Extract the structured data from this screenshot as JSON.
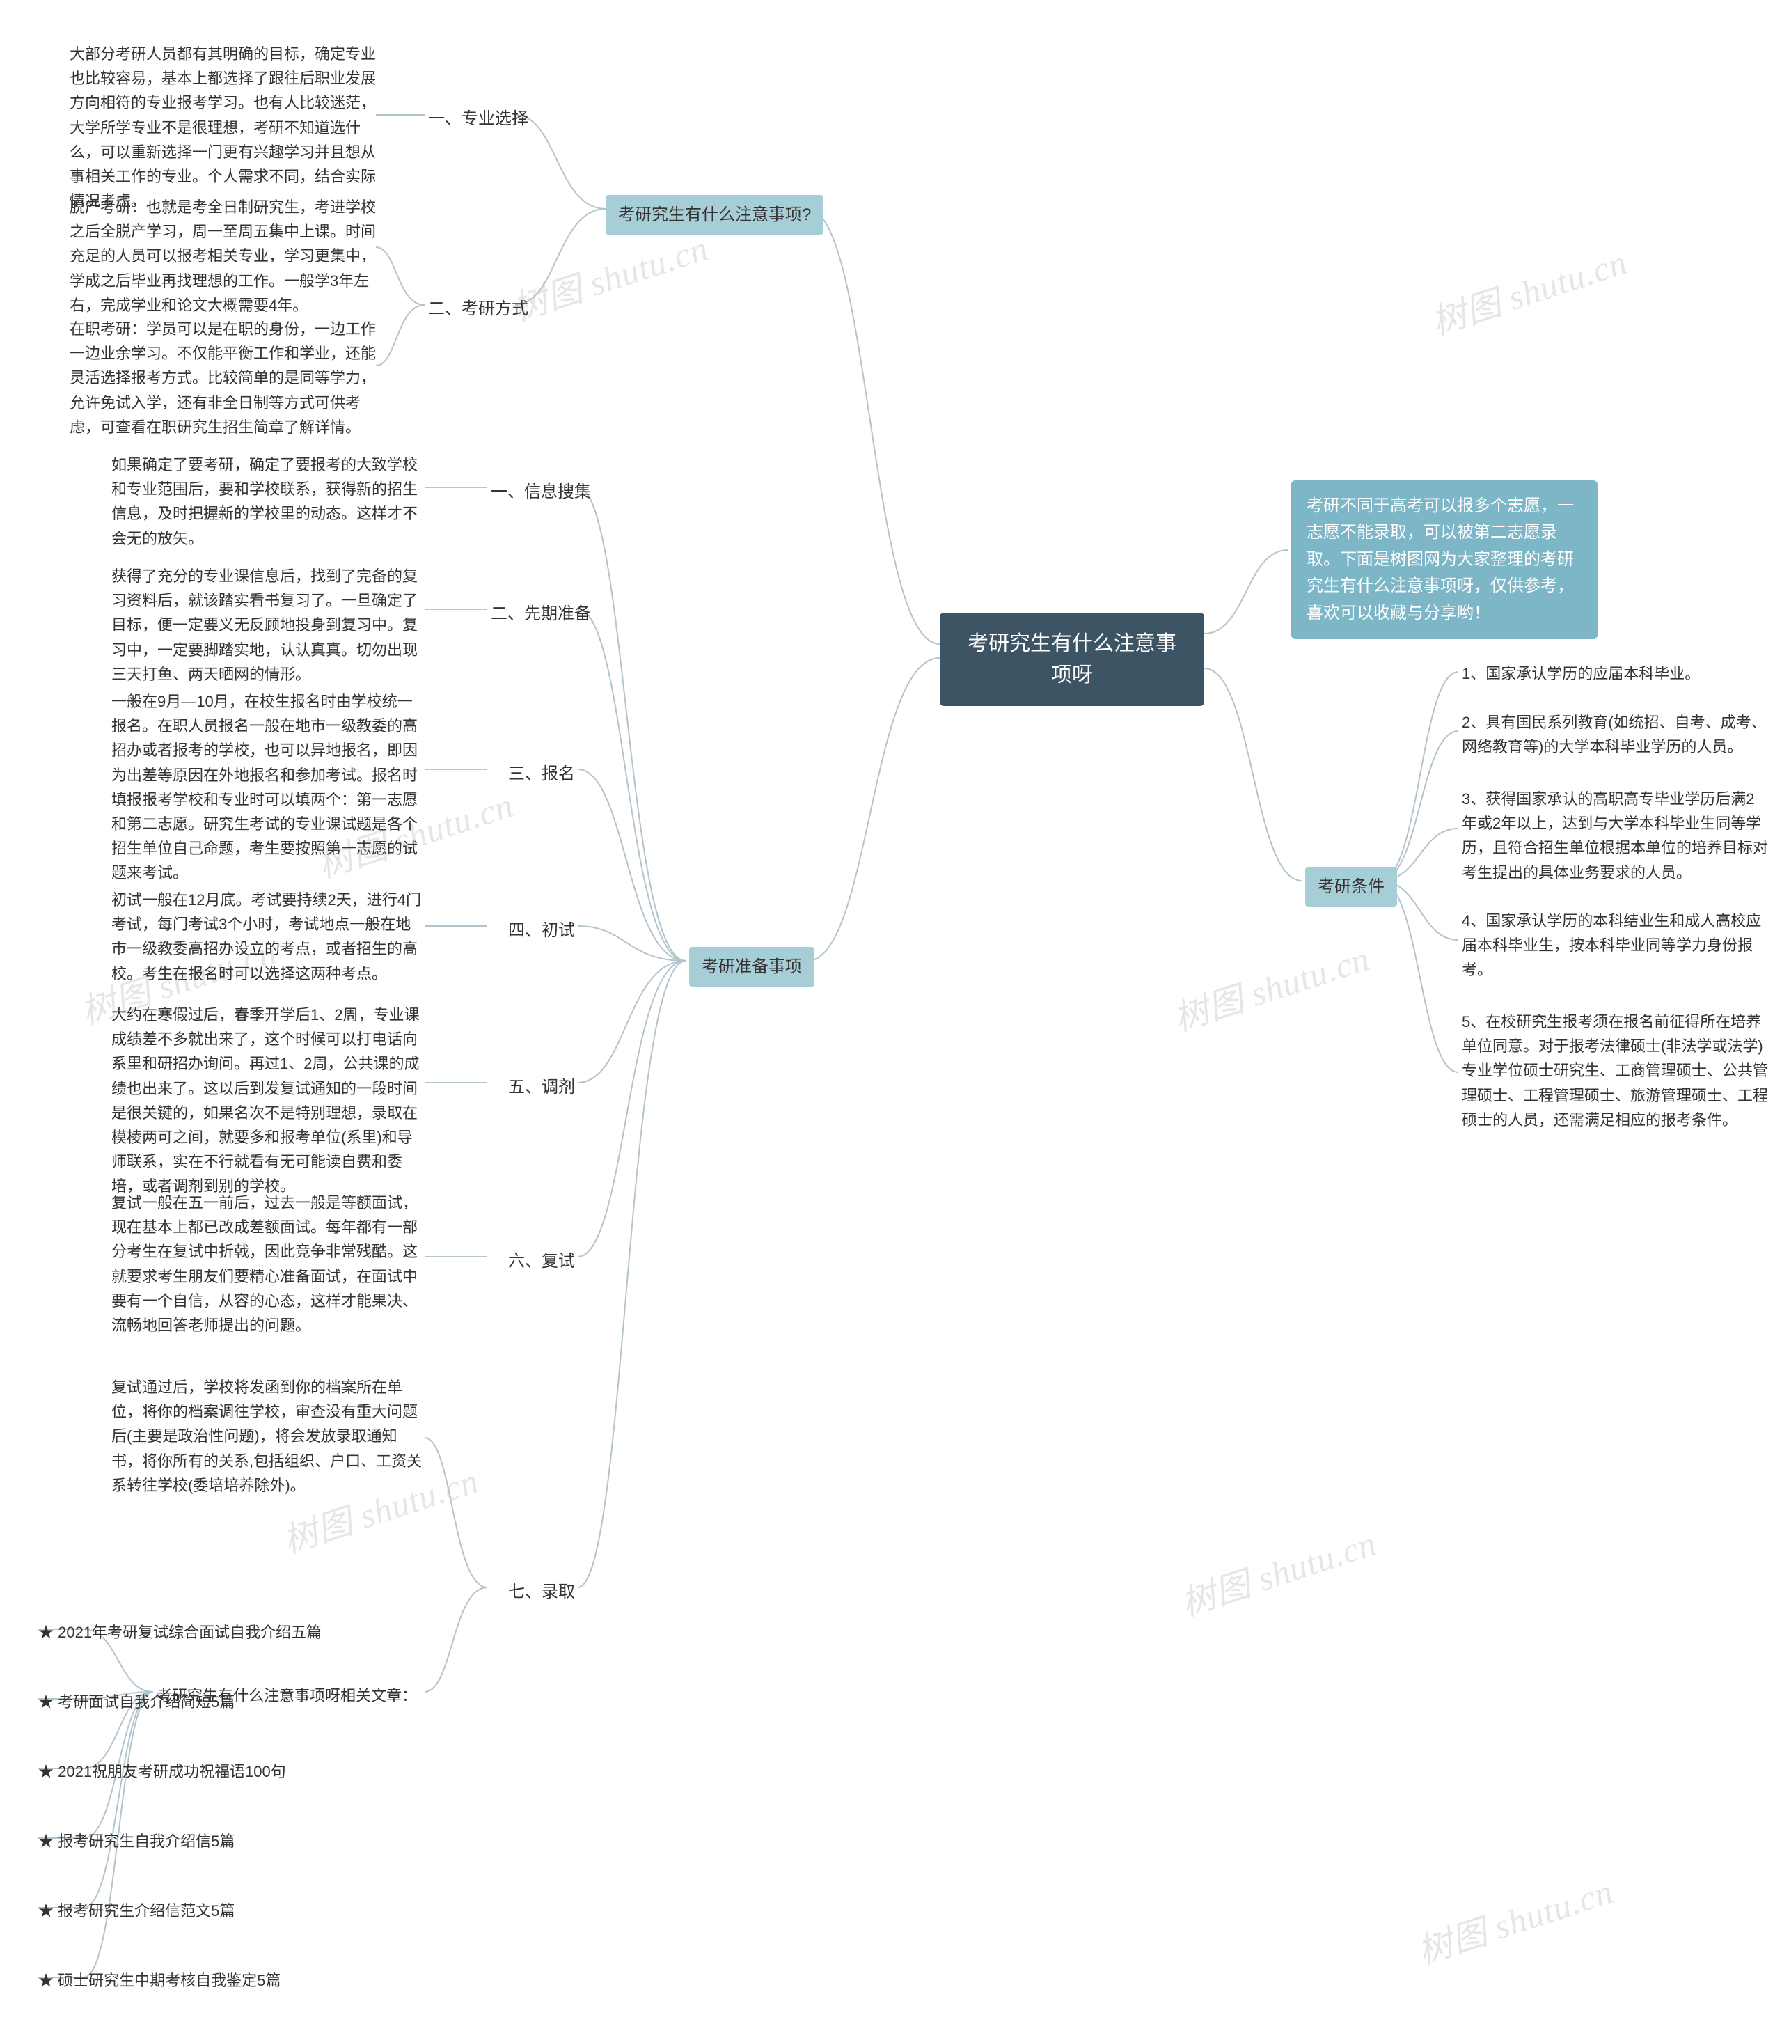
{
  "colors": {
    "bg": "#ffffff",
    "root_bg": "#3d5464",
    "root_fg": "#ffffff",
    "intro_bg": "#7db6c7",
    "intro_fg": "#ffffff",
    "group_bg": "#a7cdd7",
    "group_fg": "#333333",
    "text": "#333333",
    "connector": "#b3c4cc",
    "watermark": "#e6e6e6"
  },
  "root": "考研究生有什么注意事项呀",
  "intro": "考研不同于高考可以报多个志愿，一志愿不能录取，可以被第二志愿录取。下面是树图网为大家整理的考研究生有什么注意事项呀，仅供参考，喜欢可以收藏与分享哟！",
  "cond": {
    "title": "考研条件",
    "items": [
      "1、国家承认学历的应届本科毕业。",
      "2、具有国民系列教育(如统招、自考、成考、网络教育等)的大学本科毕业学历的人员。",
      "3、获得国家承认的高职高专毕业学历后满2年或2年以上，达到与大学本科毕业生同等学历，且符合招生单位根据本单位的培养目标对考生提出的具体业务要求的人员。",
      "4、国家承认学历的本科结业生和成人高校应届本科毕业生，按本科毕业同等学力身份报考。",
      "5、在校研究生报考须在报名前征得所在培养单位同意。对于报考法律硕士(非法学或法学)专业学位硕士研究生、工商管理硕士、公共管理硕士、工程管理硕士、旅游管理硕士、工程硕士的人员，还需满足相应的报考条件。"
    ]
  },
  "left": {
    "g1": {
      "title": "考研究生有什么注意事项?",
      "sec1": {
        "label": "一、专业选择",
        "text": "大部分考研人员都有其明确的目标，确定专业也比较容易，基本上都选择了跟往后职业发展方向相符的专业报考学习。也有人比较迷茫，大学所学专业不是很理想，考研不知道选什么，可以重新选择一门更有兴趣学习并且想从事相关工作的专业。个人需求不同，结合实际情况考虑。"
      },
      "sec2": {
        "label": "二、考研方式",
        "items": [
          "脱产考研：也就是考全日制研究生，考进学校之后全脱产学习，周一至周五集中上课。时间充足的人员可以报考相关专业，学习更集中，学成之后毕业再找理想的工作。一般学3年左右，完成学业和论文大概需要4年。",
          "在职考研：学员可以是在职的身份，一边工作一边业余学习。不仅能平衡工作和学业，还能灵活选择报考方式。比较简单的是同等学力，允许免试入学，还有非全日制等方式可供考虑，可查看在职研究生招生简章了解详情。"
        ]
      }
    },
    "g2": {
      "title": "考研准备事项",
      "sec1": {
        "label": "一、信息搜集",
        "text": "如果确定了要考研，确定了要报考的大致学校和专业范围后，要和学校联系，获得新的招生信息，及时把握新的学校里的动态。这样才不会无的放矢。"
      },
      "sec2": {
        "label": "二、先期准备",
        "text": "获得了充分的专业课信息后，找到了完备的复习资料后，就该踏实看书复习了。一旦确定了目标，便一定要义无反顾地投身到复习中。复习中，一定要脚踏实地，认认真真。切勿出现三天打鱼、两天晒网的情形。"
      },
      "sec3": {
        "label": "三、报名",
        "text": "一般在9月—10月，在校生报名时由学校统一报名。在职人员报名一般在地市一级教委的高招办或者报考的学校，也可以异地报名，即因为出差等原因在外地报名和参加考试。报名时填报报考学校和专业时可以填两个：第一志愿和第二志愿。研究生考试的专业课试题是各个招生单位自己命题，考生要按照第一志愿的试题来考试。"
      },
      "sec4": {
        "label": "四、初试",
        "text": "初试一般在12月底。考试要持续2天，进行4门考试，每门考试3个小时，考试地点一般在地市一级教委高招办设立的考点，或者招生的高校。考生在报名时可以选择这两种考点。"
      },
      "sec5": {
        "label": "五、调剂",
        "text": "大约在寒假过后，春季开学后1、2周，专业课成绩差不多就出来了，这个时候可以打电话向系里和研招办询问。再过1、2周，公共课的成绩也出来了。这以后到发复试通知的一段时间是很关键的，如果名次不是特别理想，录取在模棱两可之间，就要多和报考单位(系里)和导师联系，实在不行就看有无可能读自费和委培，或者调剂到别的学校。"
      },
      "sec6": {
        "label": "六、复试",
        "text": "复试一般在五一前后，过去一般是等额面试，现在基本上都已改成差额面试。每年都有一部分考生在复试中折戟，因此竞争非常残酷。这就要求考生朋友们要精心准备面试，在面试中要有一个自信，从容的心态，这样才能果决、流畅地回答老师提出的问题。"
      },
      "sec7": {
        "label": "七、录取",
        "items": [
          "复试通过后，学校将发函到你的档案所在单位，将你的档案调往学校，审查没有重大问题后(主要是政治性问题)，将会发放录取通知书，将你所有的关系,包括组织、户口、工资关系转往学校(委培培养除外)。",
          "考研究生有什么注意事项呀相关文章："
        ]
      }
    }
  },
  "links": [
    "★ 2021年考研复试综合面试自我介绍五篇",
    "★ 考研面试自我介绍简短5篇",
    "★ 2021祝朋友考研成功祝福语100句",
    "★ 报考研究生自我介绍信5篇",
    "★ 报考研究生介绍信范文5篇",
    "★ 硕士研究生中期考核自我鉴定5篇"
  ],
  "watermark": "树图 shutu.cn"
}
